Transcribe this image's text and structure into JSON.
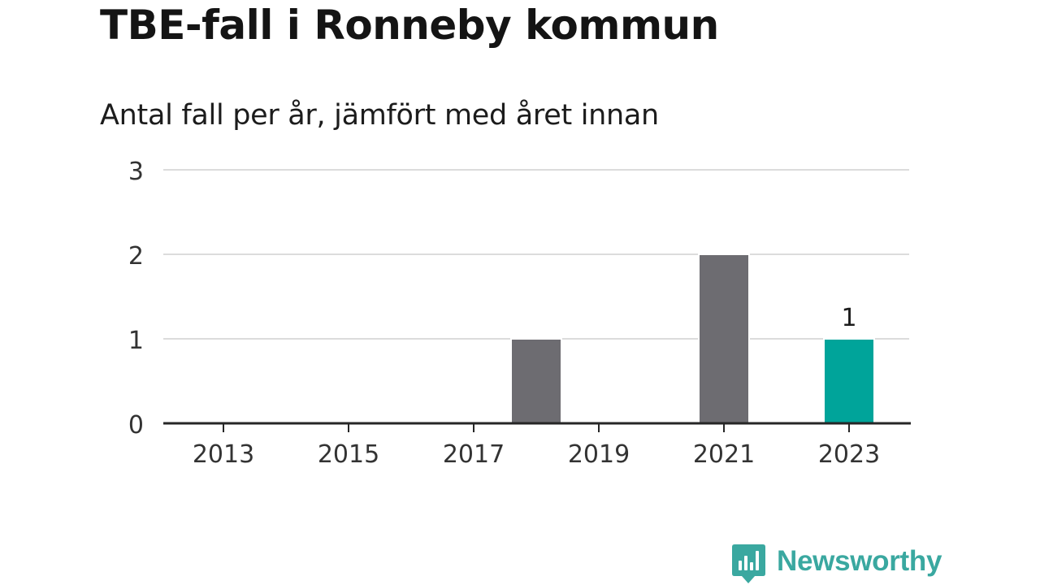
{
  "title": "TBE-fall i Ronneby kommun",
  "subtitle": "Antal fall per år, jämfört med året innan",
  "brand": {
    "name": "Newsworthy",
    "color": "#3aa8a0"
  },
  "chart_data": {
    "type": "bar",
    "categories": [
      "2013",
      "2014",
      "2015",
      "2016",
      "2017",
      "2018",
      "2019",
      "2020",
      "2021",
      "2022",
      "2023"
    ],
    "values": [
      0,
      0,
      0,
      0,
      0,
      1,
      0,
      0,
      2,
      0,
      1
    ],
    "highlight": {
      "category": "2023",
      "color": "#00a49a",
      "label": "1"
    },
    "bar_color": "#6d6c71",
    "x_tick_labels": [
      "2013",
      "2015",
      "2017",
      "2019",
      "2021",
      "2023"
    ],
    "y_ticks": [
      0,
      1,
      2,
      3
    ],
    "ylim": [
      0,
      3
    ],
    "grid": true,
    "legend": "none",
    "xlabel": "",
    "ylabel": ""
  }
}
